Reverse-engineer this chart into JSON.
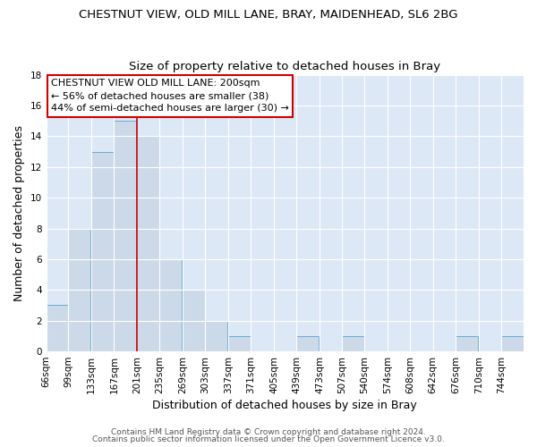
{
  "title": "CHESTNUT VIEW, OLD MILL LANE, BRAY, MAIDENHEAD, SL6 2BG",
  "subtitle": "Size of property relative to detached houses in Bray",
  "xlabel": "Distribution of detached houses by size in Bray",
  "ylabel": "Number of detached properties",
  "bin_labels": [
    "66sqm",
    "99sqm",
    "133sqm",
    "167sqm",
    "201sqm",
    "235sqm",
    "269sqm",
    "303sqm",
    "337sqm",
    "371sqm",
    "405sqm",
    "439sqm",
    "473sqm",
    "507sqm",
    "540sqm",
    "574sqm",
    "608sqm",
    "642sqm",
    "676sqm",
    "710sqm",
    "744sqm"
  ],
  "bin_edges": [
    66,
    99,
    133,
    167,
    201,
    235,
    269,
    303,
    337,
    371,
    405,
    439,
    473,
    507,
    540,
    574,
    608,
    642,
    676,
    710,
    744
  ],
  "counts": [
    3,
    8,
    13,
    15,
    14,
    6,
    4,
    2,
    1,
    0,
    0,
    1,
    0,
    1,
    0,
    0,
    0,
    0,
    1,
    0,
    1
  ],
  "bar_color": "#ccd9e8",
  "bar_edge_color": "#6aaad4",
  "property_line_x": 201,
  "property_line_color": "#cc0000",
  "annotation_line1": "CHESTNUT VIEW OLD MILL LANE: 200sqm",
  "annotation_line2": "← 56% of detached houses are smaller (38)",
  "annotation_line3": "44% of semi-detached houses are larger (30) →",
  "annotation_box_color": "#ffffff",
  "annotation_box_edge_color": "#cc0000",
  "ylim": [
    0,
    18
  ],
  "yticks": [
    0,
    2,
    4,
    6,
    8,
    10,
    12,
    14,
    16,
    18
  ],
  "footer1": "Contains HM Land Registry data © Crown copyright and database right 2024.",
  "footer2": "Contains public sector information licensed under the Open Government Licence v3.0.",
  "background_color": "#ffffff",
  "plot_bg_color": "#dce8f5",
  "grid_color": "#ffffff",
  "title_fontsize": 9.5,
  "subtitle_fontsize": 9.5,
  "axis_label_fontsize": 9,
  "tick_fontsize": 7.5,
  "annotation_fontsize": 8,
  "footer_fontsize": 6.5,
  "footer_color": "#555555"
}
